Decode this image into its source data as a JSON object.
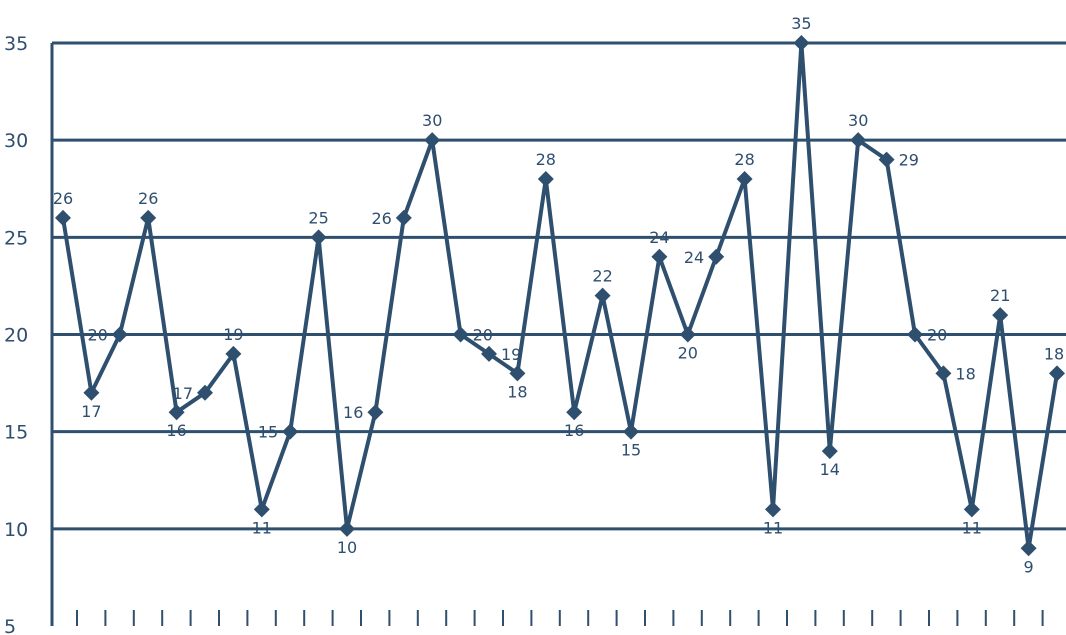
{
  "chart_data": {
    "type": "line",
    "title": "",
    "xlabel": "",
    "ylabel": "",
    "ylim": [
      5,
      35
    ],
    "y_ticks": [
      "5",
      "10",
      "15",
      "20",
      "25",
      "30",
      "35"
    ],
    "grid": true,
    "x": [
      1,
      2,
      3,
      4,
      5,
      6,
      7,
      8,
      9,
      10,
      11,
      12,
      13,
      14,
      15,
      16,
      17,
      18,
      19,
      20,
      21,
      22,
      23,
      24,
      25,
      26,
      27,
      28,
      29,
      30,
      31,
      32,
      33,
      34,
      35,
      36
    ],
    "series": [
      {
        "name": "",
        "values": [
          26,
          17,
          20,
          26,
          16,
          17,
          19,
          11,
          15,
          25,
          10,
          16,
          26,
          30,
          20,
          19,
          18,
          28,
          16,
          22,
          15,
          24,
          20,
          24,
          28,
          11,
          35,
          14,
          30,
          29,
          20,
          18,
          11,
          21,
          9,
          18
        ],
        "labels": [
          "26",
          "17",
          "20",
          "26",
          "16",
          "17",
          "19",
          "11",
          "15",
          "25",
          "10",
          "16",
          "26",
          "30",
          "20",
          "19",
          "18",
          "28",
          "16",
          "22",
          "15",
          "24",
          "20",
          "24",
          "28",
          "11",
          "35",
          "14",
          "30",
          "29",
          "20",
          "18",
          "11",
          "21",
          "9",
          "18"
        ]
      }
    ],
    "colors": {
      "line": "#2f4f6f",
      "grid": "#2f4f6f"
    }
  }
}
